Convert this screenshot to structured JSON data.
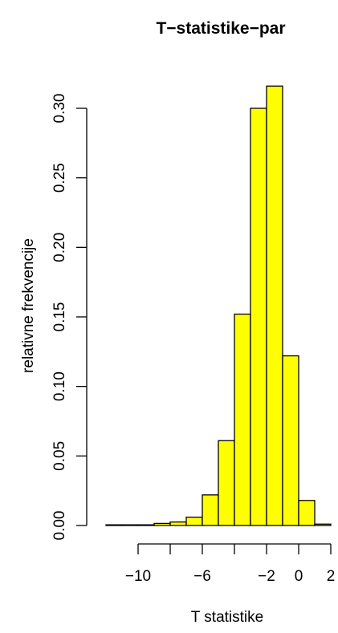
{
  "chart_data": {
    "type": "bar",
    "title": "T−statistike−par",
    "xlabel": "T statistike",
    "ylabel": "relativne frekvencije",
    "bar_color": "#ffff00",
    "bins": [
      {
        "x0": -12,
        "x1": -11,
        "value": 0.0005
      },
      {
        "x0": -11,
        "x1": -10,
        "value": 0.0005
      },
      {
        "x0": -10,
        "x1": -9,
        "value": 0.0005
      },
      {
        "x0": -9,
        "x1": -8,
        "value": 0.0015
      },
      {
        "x0": -8,
        "x1": -7,
        "value": 0.0025
      },
      {
        "x0": -7,
        "x1": -6,
        "value": 0.006
      },
      {
        "x0": -6,
        "x1": -5,
        "value": 0.022
      },
      {
        "x0": -5,
        "x1": -4,
        "value": 0.061
      },
      {
        "x0": -4,
        "x1": -3,
        "value": 0.152
      },
      {
        "x0": -3,
        "x1": -2,
        "value": 0.3
      },
      {
        "x0": -2,
        "x1": -1,
        "value": 0.316
      },
      {
        "x0": -1,
        "x1": 0,
        "value": 0.122
      },
      {
        "x0": 0,
        "x1": 1,
        "value": 0.018
      },
      {
        "x0": 1,
        "x1": 2,
        "value": 0.001
      }
    ],
    "xlim": [
      -12,
      2
    ],
    "ylim": [
      0,
      0.32
    ],
    "x_ticks": [
      -10,
      -8,
      -6,
      -4,
      -2,
      0,
      2
    ],
    "x_tick_labels": [
      "−10",
      "",
      "−6",
      "",
      "−2",
      "0",
      "2"
    ],
    "y_ticks": [
      0,
      0.05,
      0.1,
      0.15,
      0.2,
      0.25,
      0.3
    ],
    "y_tick_labels": [
      "0.00",
      "0.05",
      "0.10",
      "0.15",
      "0.20",
      "0.25",
      "0.30"
    ]
  }
}
